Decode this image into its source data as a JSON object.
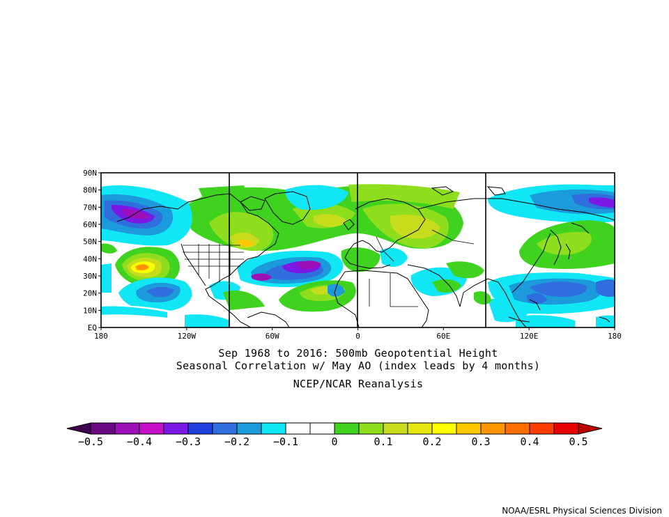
{
  "map": {
    "lat_labels": [
      "90N",
      "80N",
      "70N",
      "60N",
      "50N",
      "40N",
      "30N",
      "20N",
      "10N",
      "EQ"
    ],
    "lon_labels": [
      "180",
      "120W",
      "60W",
      "0",
      "60E",
      "120E",
      "180"
    ]
  },
  "titles": {
    "line1": "Sep 1968 to 2016: 500mb Geopotential Height",
    "line2": "Seasonal Correlation w/ May AO (index leads by 4 months)",
    "line3": "NCEP/NCAR Reanalysis"
  },
  "colorbar": {
    "colors": [
      "#3f0050",
      "#6a0a82",
      "#9d10b8",
      "#c80fc8",
      "#7a18e6",
      "#1f3fe0",
      "#2e6fdd",
      "#1c9bdc",
      "#10e6f4",
      "#ffffff",
      "#ffffff",
      "#3fd21e",
      "#8ede1e",
      "#c8dc1e",
      "#e6e610",
      "#ffff00",
      "#ffc800",
      "#ff9600",
      "#ff6e00",
      "#ff3c00",
      "#e60000",
      "#be0000"
    ],
    "labels": [
      "−0.5",
      "−0.4",
      "−0.3",
      "−0.2",
      "−0.1",
      "0",
      "0.1",
      "0.2",
      "0.3",
      "0.4",
      "0.5"
    ]
  },
  "credit": "NOAA/ESRL Physical Sciences Division"
}
